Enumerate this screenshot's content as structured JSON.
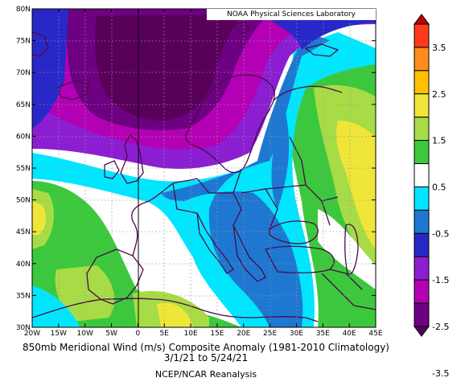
{
  "credit": "NOAA Physical Sciences Laboratory",
  "caption": {
    "line1": "850mb Meridional Wind (m/s) Composite Anomaly (1981-2010 Climatology)",
    "line2": "3/1/21  to 5/24/21",
    "line3": "NCEP/NCAR Reanalysis"
  },
  "axes": {
    "lon_labels": [
      "20W",
      "15W",
      "10W",
      "5W",
      "0",
      "5E",
      "10E",
      "15E",
      "20E",
      "25E",
      "30E",
      "35E",
      "40E",
      "45E"
    ],
    "lat_labels": [
      "80N",
      "75N",
      "70N",
      "65N",
      "60N",
      "55N",
      "50N",
      "45N",
      "40N",
      "35N",
      "30N"
    ],
    "lon_range": [
      -20,
      45
    ],
    "lat_range": [
      30,
      80
    ]
  },
  "colorbar": {
    "labels": [
      "3.5",
      "2.5",
      "1.5",
      "0.5",
      "-0.5",
      "-1.5",
      "-2.5",
      "-3.5"
    ],
    "colors": [
      "#c00000",
      "#ff3a1a",
      "#ff8c1a",
      "#ffc000",
      "#f0e63a",
      "#a8dc46",
      "#3cc83c",
      "#ffffff",
      "#00e6ff",
      "#1e78d2",
      "#2828c8",
      "#8c1ed2",
      "#b400b4",
      "#6e0082",
      "#58005a"
    ]
  }
}
